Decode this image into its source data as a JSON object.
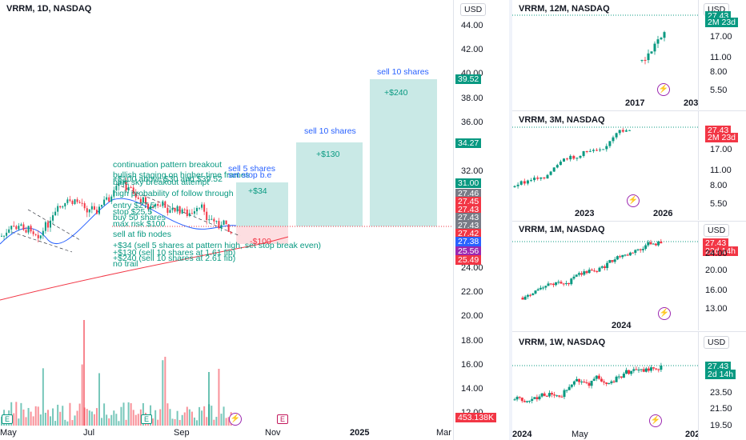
{
  "colors": {
    "up": "#089981",
    "down": "#f23645",
    "accent": "#2962ff",
    "target_zone": "#b2dfdb",
    "stop_zone": "#fcd6d9"
  },
  "main": {
    "symbol": "VRRM, 1D, NASDAQ",
    "currency": "USD",
    "time_labels": [
      "May",
      "Jul",
      "Sep",
      "Nov",
      "2025",
      "Mar"
    ],
    "price_labels": [
      "44.00",
      "42.00",
      "40.00",
      "38.00",
      "36.00",
      "32.00",
      "24.00",
      "22.00",
      "20.00",
      "18.00",
      "16.00",
      "14.00",
      "12.00"
    ],
    "price_tags": [
      {
        "text": "39.52",
        "color": "#089981"
      },
      {
        "text": "34.27",
        "color": "#089981"
      },
      {
        "text": "31.00",
        "color": "#089981"
      },
      {
        "text": "27.46",
        "color": "#787b86"
      },
      {
        "text": "27.45",
        "color": "#f23645"
      },
      {
        "text": "27.43",
        "color": "#f23645"
      },
      {
        "text": "27.43",
        "color": "#787b86"
      },
      {
        "text": "27.43",
        "color": "#787b86"
      },
      {
        "text": "27.42",
        "color": "#f23645"
      },
      {
        "text": "27.38",
        "color": "#2962ff"
      },
      {
        "text": "25.56",
        "color": "#9c27b0"
      },
      {
        "text": "25.49",
        "color": "#f23645"
      },
      {
        "text": "453.138K",
        "color": "#f23645"
      }
    ],
    "annotations": {
      "continuation": "continuation pattern breakout",
      "bullish": "bullish staging on higher time frames",
      "blue_sky": "blue sky breakout attempt",
      "above": "+$100 above $30 and $39.52",
      "probability": "high probability of follow through",
      "entry": "entry $27.5",
      "stop": "stop $25.5",
      "buy": "buy 50 shares",
      "max_risk": "max risk $100",
      "sell_fib": "sell at fib nodes",
      "plan1": "+$34 (sell 5 shares at pattern high, set stop break even)",
      "plan2": "+$130 (sell 10 shares at 1.61 fib)",
      "plan3": "+$240 (sell 10 shares at 2.61 fib)",
      "no_trail": "no trail",
      "sell5": "sell 5 shares",
      "set_stop": "set stop b.e",
      "sell10a": "sell 10 shares",
      "sell10b": "sell 10 shares",
      "gain34": "+$34",
      "gain130": "+$130",
      "gain240": "+$240",
      "loss100": "-$100"
    },
    "earnings_badge": "E"
  },
  "right_panes": [
    {
      "symbol": "VRRM, 12M, NASDAQ",
      "currency": "USD",
      "price_labels": [
        "17.00",
        "11.00",
        "8.00",
        "5.50"
      ],
      "time_labels": [
        "2017",
        "203"
      ],
      "tags": [
        {
          "text": "27.43",
          "color": "#089981"
        },
        {
          "text": "2M 23d",
          "color": "#089981"
        }
      ]
    },
    {
      "symbol": "VRRM, 3M, NASDAQ",
      "currency": "USD",
      "price_labels": [
        "17.00",
        "11.00",
        "8.00",
        "5.50"
      ],
      "time_labels": [
        "2023",
        "2026"
      ],
      "tags": [
        {
          "text": "27.43",
          "color": "#f23645"
        },
        {
          "text": "2M 23d",
          "color": "#f23645"
        }
      ]
    },
    {
      "symbol": "VRRM, 1M, NASDAQ",
      "currency": "USD",
      "price_labels": [
        "24.00",
        "20.00",
        "16.00",
        "13.00"
      ],
      "time_labels": [
        "2024"
      ],
      "tags": [
        {
          "text": "27.43",
          "color": "#f23645"
        },
        {
          "text": "22d 14h",
          "color": "#f23645"
        }
      ]
    },
    {
      "symbol": "VRRM, 1W, NASDAQ",
      "currency": "USD",
      "price_labels": [
        "23.50",
        "21.50",
        "19.50"
      ],
      "time_labels": [
        "2024",
        "May",
        "202"
      ],
      "tags": [
        {
          "text": "27.43",
          "color": "#089981"
        },
        {
          "text": "2d 14h",
          "color": "#089981"
        }
      ]
    }
  ]
}
